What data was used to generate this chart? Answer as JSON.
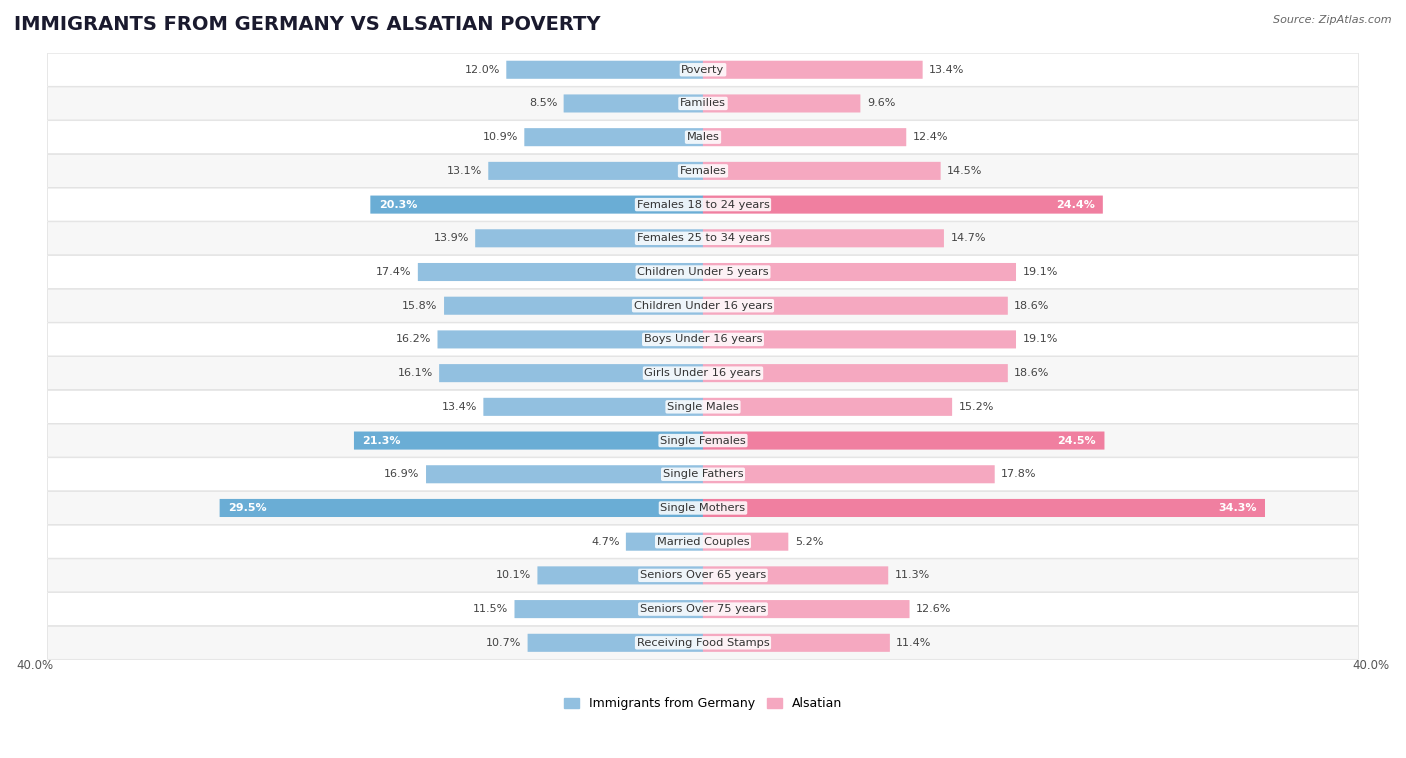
{
  "title": "IMMIGRANTS FROM GERMANY VS ALSATIAN POVERTY",
  "source": "Source: ZipAtlas.com",
  "categories": [
    "Poverty",
    "Families",
    "Males",
    "Females",
    "Females 18 to 24 years",
    "Females 25 to 34 years",
    "Children Under 5 years",
    "Children Under 16 years",
    "Boys Under 16 years",
    "Girls Under 16 years",
    "Single Males",
    "Single Females",
    "Single Fathers",
    "Single Mothers",
    "Married Couples",
    "Seniors Over 65 years",
    "Seniors Over 75 years",
    "Receiving Food Stamps"
  ],
  "germany_values": [
    12.0,
    8.5,
    10.9,
    13.1,
    20.3,
    13.9,
    17.4,
    15.8,
    16.2,
    16.1,
    13.4,
    21.3,
    16.9,
    29.5,
    4.7,
    10.1,
    11.5,
    10.7
  ],
  "alsatian_values": [
    13.4,
    9.6,
    12.4,
    14.5,
    24.4,
    14.7,
    19.1,
    18.6,
    19.1,
    18.6,
    15.2,
    24.5,
    17.8,
    34.3,
    5.2,
    11.3,
    12.6,
    11.4
  ],
  "germany_color": "#92c0e0",
  "alsatian_color": "#f5a8c0",
  "highlight_germany_color": "#6aadd5",
  "highlight_alsatian_color": "#f07fa0",
  "background_color": "#ffffff",
  "row_bg_light": "#f7f7f7",
  "row_bg_white": "#ffffff",
  "xlim": 40.0,
  "legend_germany": "Immigrants from Germany",
  "legend_alsatian": "Alsatian",
  "bar_height": 0.52,
  "title_fontsize": 14,
  "label_fontsize": 8.2,
  "value_fontsize": 8,
  "axis_label_fontsize": 8.5,
  "highlight_rows": [
    4,
    11,
    13
  ],
  "bottom_label": "40.0%"
}
